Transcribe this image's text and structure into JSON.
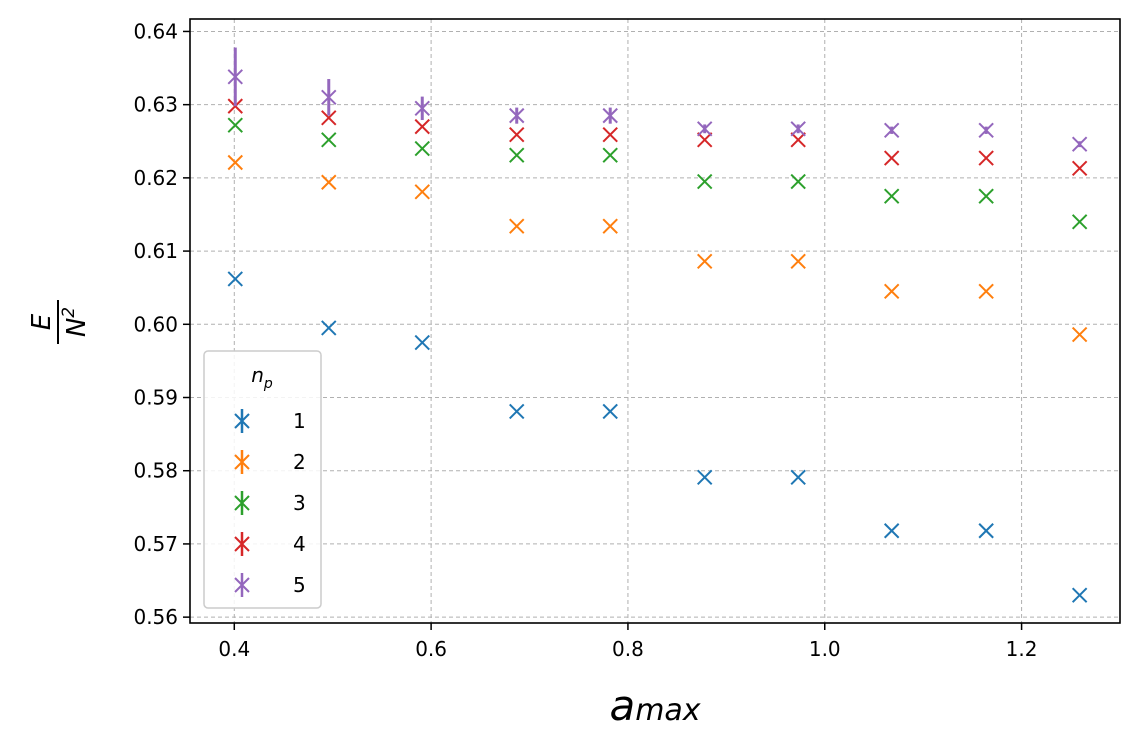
{
  "chart_data": {
    "type": "scatter",
    "title": "",
    "xlabel": {
      "base": "a",
      "sub": "max"
    },
    "ylabel": {
      "numerator": "E",
      "denominator": "N",
      "power": "2"
    },
    "xlim": [
      0.355,
      1.3
    ],
    "ylim": [
      0.5592,
      0.6417
    ],
    "x_ticks": [
      0.4,
      0.6,
      0.8,
      1.0,
      1.2
    ],
    "x_tick_labels": [
      "0.4",
      "0.6",
      "0.8",
      "1.0",
      "1.2"
    ],
    "y_ticks": [
      0.56,
      0.57,
      0.58,
      0.59,
      0.6,
      0.61,
      0.62,
      0.63,
      0.64
    ],
    "y_tick_labels": [
      "0.56",
      "0.57",
      "0.58",
      "0.59",
      "0.60",
      "0.61",
      "0.62",
      "0.63",
      "0.64"
    ],
    "grid": true,
    "legend": {
      "placement": "lower-left",
      "title_base": "n",
      "title_sub": "p"
    },
    "marker": "x",
    "x": [
      0.401,
      0.496,
      0.591,
      0.687,
      0.782,
      0.878,
      0.973,
      1.068,
      1.164,
      1.259
    ],
    "series": [
      {
        "name": "1",
        "color": "#1f77b4",
        "values": [
          0.6062,
          0.5995,
          0.5975,
          0.5881,
          0.5881,
          0.5791,
          0.5791,
          0.5718,
          0.5718,
          0.563
        ],
        "errors": [
          0,
          0,
          0,
          0,
          0,
          0,
          0,
          0,
          0,
          0
        ]
      },
      {
        "name": "2",
        "color": "#ff7f0e",
        "values": [
          0.6221,
          0.6194,
          0.6181,
          0.6134,
          0.6134,
          0.6086,
          0.6086,
          0.6045,
          0.6045,
          0.5986
        ],
        "errors": [
          0,
          0,
          0,
          0,
          0,
          0,
          0,
          0,
          0,
          0
        ]
      },
      {
        "name": "3",
        "color": "#2ca02c",
        "values": [
          0.6272,
          0.6252,
          0.624,
          0.6231,
          0.6231,
          0.6195,
          0.6195,
          0.6175,
          0.6175,
          0.614
        ],
        "errors": [
          0,
          0,
          0,
          0,
          0,
          0,
          0,
          0,
          0,
          0
        ]
      },
      {
        "name": "4",
        "color": "#d62728",
        "values": [
          0.6298,
          0.6282,
          0.627,
          0.6259,
          0.6259,
          0.6252,
          0.6252,
          0.6227,
          0.6227,
          0.6213
        ],
        "errors": [
          0,
          0,
          0,
          0,
          0,
          0,
          0,
          0,
          0,
          0
        ]
      },
      {
        "name": "5",
        "color": "#9467bd",
        "values": [
          0.6338,
          0.631,
          0.6295,
          0.6285,
          0.6285,
          0.6267,
          0.6267,
          0.6265,
          0.6265,
          0.6246
        ],
        "errors": [
          0.004,
          0.0025,
          0.0016,
          0.0011,
          0.0011,
          0.0006,
          0.0006,
          0.0005,
          0.0005,
          0.0004
        ]
      }
    ]
  }
}
